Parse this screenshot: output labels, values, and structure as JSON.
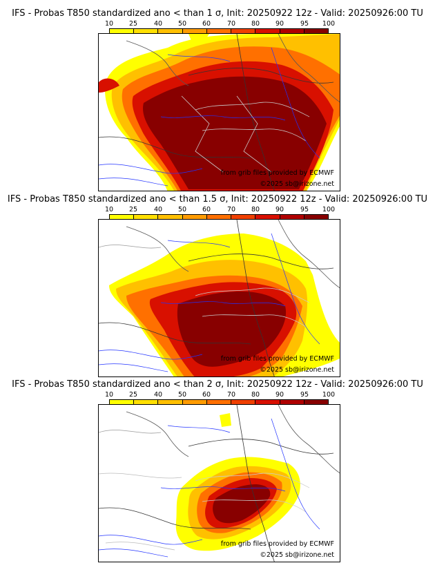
{
  "colorbar": {
    "ticks": [
      "10",
      "25",
      "40",
      "50",
      "60",
      "70",
      "80",
      "90",
      "95",
      "100"
    ],
    "colors": [
      "#ffff00",
      "#ffe000",
      "#ffc000",
      "#ff9c00",
      "#ff7000",
      "#f04000",
      "#d81000",
      "#b00000",
      "#880000"
    ]
  },
  "panels": [
    {
      "title": "IFS - Probas T850  standardized ano < than 1 σ, Init: 20250922 12z - Valid: 20250926:00 TU",
      "credit_source": "from grib files provided by ECMWF",
      "credit_copyright": "©2025 sb@irizone.net"
    },
    {
      "title": "IFS - Probas T850  standardized ano < than 1.5 σ, Init: 20250922 12z - Valid: 20250926:00 TU",
      "credit_source": "from grib files provided by ECMWF",
      "credit_copyright": "©2025 sb@irizone.net"
    },
    {
      "title": "IFS - Probas T850  standardized ano < than 2 σ, Init: 20250922 12z - Valid: 20250926:00 TU",
      "credit_source": "from grib files provided by ECMWF",
      "credit_copyright": "©2025 sb@irizone.net"
    }
  ]
}
